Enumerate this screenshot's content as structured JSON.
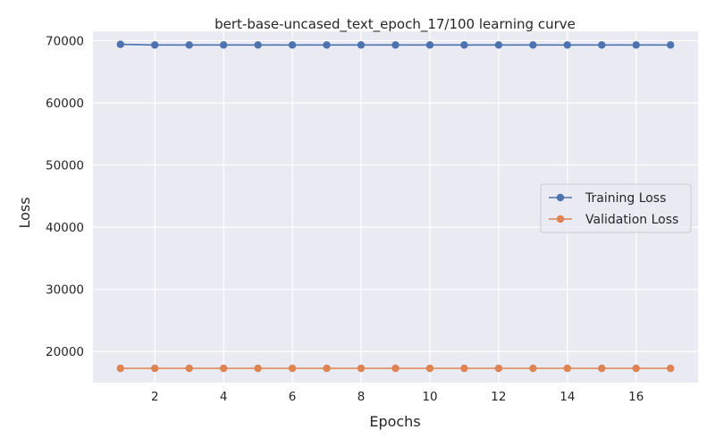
{
  "chart_data": {
    "type": "line",
    "title": "bert-base-uncased_text_epoch_17/100 learning curve",
    "xlabel": "Epochs",
    "ylabel": "Loss",
    "x": [
      1,
      2,
      3,
      4,
      5,
      6,
      7,
      8,
      9,
      10,
      11,
      12,
      13,
      14,
      15,
      16,
      17
    ],
    "x_ticks": [
      2,
      4,
      6,
      8,
      10,
      12,
      14,
      16
    ],
    "y_ticks": [
      20000,
      30000,
      40000,
      50000,
      60000,
      70000
    ],
    "xlim": [
      0.2,
      17.8
    ],
    "ylim": [
      15000,
      71500
    ],
    "grid": true,
    "legend_position": "center-right",
    "series": [
      {
        "name": "Training Loss",
        "color": "#4C72B0",
        "values": [
          69400,
          69300,
          69300,
          69300,
          69300,
          69300,
          69300,
          69300,
          69300,
          69300,
          69300,
          69300,
          69300,
          69300,
          69300,
          69300,
          69300
        ]
      },
      {
        "name": "Validation Loss",
        "color": "#DD8452",
        "values": [
          17300,
          17300,
          17300,
          17300,
          17300,
          17300,
          17300,
          17300,
          17300,
          17300,
          17300,
          17300,
          17300,
          17300,
          17300,
          17300,
          17300
        ]
      }
    ]
  }
}
